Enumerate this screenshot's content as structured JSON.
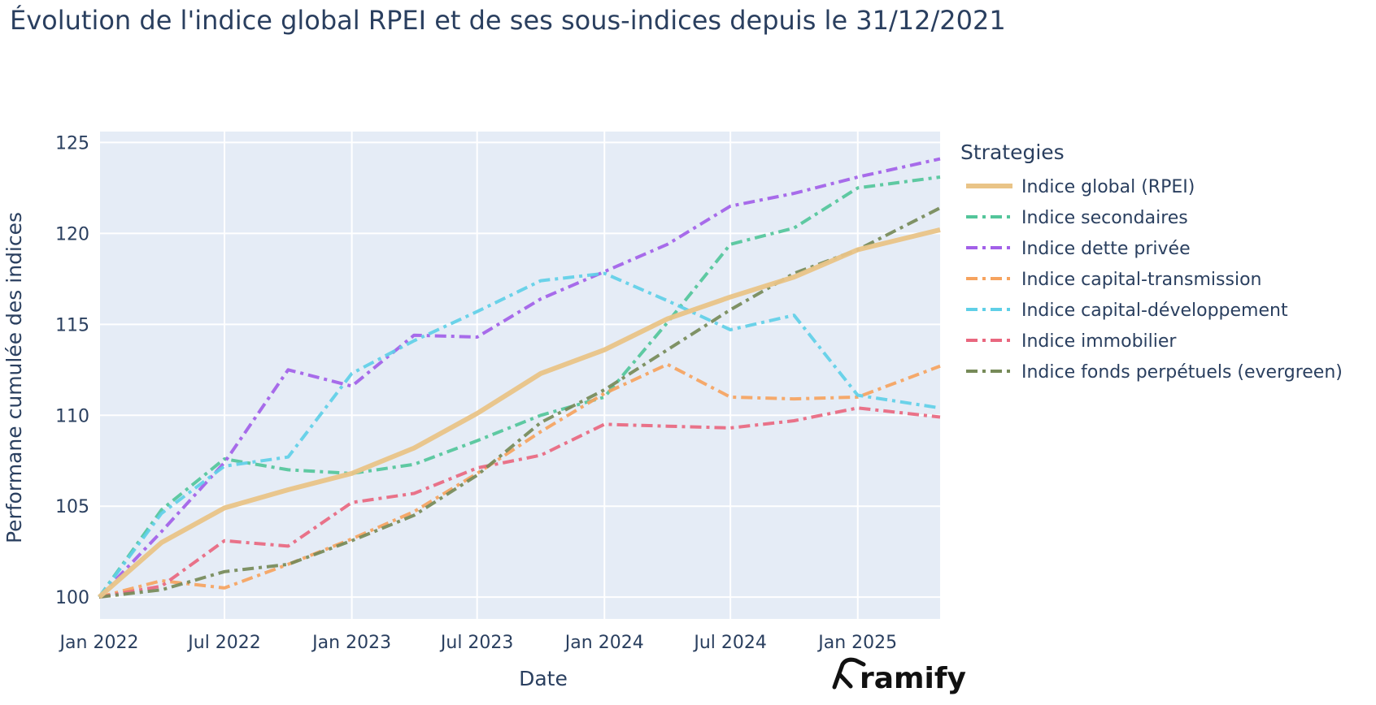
{
  "chart_data": {
    "type": "line",
    "title": "Évolution de l'indice global RPEI et de ses sous-indices depuis le 31/12/2021",
    "xlabel": "Date",
    "ylabel": "Performane cumulée des indices",
    "x_ticks": [
      "Jan 2022",
      "Jul 2022",
      "Jan 2023",
      "Jul 2023",
      "Jan 2024",
      "Jul 2024",
      "Jan 2025"
    ],
    "y_ticks": [
      100,
      105,
      110,
      115,
      120,
      125
    ],
    "ylim": [
      98.8,
      125.6
    ],
    "xlim": [
      "2022-01-01",
      "2025-04-30"
    ],
    "grid": true,
    "legend_title": "Strategies",
    "legend_position": "right",
    "x": [
      "2022-01-01",
      "2022-04-01",
      "2022-07-01",
      "2022-10-01",
      "2023-01-01",
      "2023-04-01",
      "2023-07-01",
      "2023-10-01",
      "2024-01-01",
      "2024-04-01",
      "2024-07-01",
      "2024-10-01",
      "2025-01-01",
      "2025-04-30"
    ],
    "series": [
      {
        "name": "Indice global (RPEI)",
        "color": "#e9c487",
        "style": "solid",
        "values": [
          100,
          103.0,
          104.9,
          105.9,
          106.8,
          108.2,
          110.1,
          112.3,
          113.6,
          115.3,
          116.5,
          117.6,
          119.1,
          120.2
        ]
      },
      {
        "name": "Indice secondaires",
        "color": "#53c59a",
        "style": "dashdot",
        "values": [
          100,
          104.8,
          107.6,
          107.0,
          106.8,
          107.3,
          108.6,
          110.0,
          111.0,
          115.1,
          119.4,
          120.3,
          122.5,
          123.1
        ]
      },
      {
        "name": "Indice dette privée",
        "color": "#a260e8",
        "style": "dashdot",
        "values": [
          100,
          103.6,
          107.4,
          112.5,
          111.6,
          114.4,
          114.3,
          116.4,
          117.9,
          119.4,
          121.5,
          122.2,
          123.1,
          124.1
        ]
      },
      {
        "name": "Indice capital-transmission",
        "color": "#f6a35e",
        "style": "dashdot",
        "values": [
          100,
          100.9,
          100.5,
          101.8,
          103.2,
          104.7,
          106.8,
          109.1,
          111.2,
          112.8,
          111.0,
          110.9,
          111.0,
          112.7
        ]
      },
      {
        "name": "Indice capital-développement",
        "color": "#5fcfe7",
        "style": "dashdot",
        "values": [
          100,
          104.6,
          107.2,
          107.7,
          112.3,
          114.1,
          115.7,
          117.4,
          117.8,
          116.3,
          114.7,
          115.5,
          111.1,
          110.4
        ]
      },
      {
        "name": "Indice immobilier",
        "color": "#e9677f",
        "style": "dashdot",
        "values": [
          100,
          100.6,
          103.1,
          102.8,
          105.2,
          105.7,
          107.1,
          107.8,
          109.5,
          109.4,
          109.3,
          109.7,
          110.4,
          109.9
        ]
      },
      {
        "name": "Indice fonds perpétuels (evergreen)",
        "color": "#768a58",
        "style": "dashdot",
        "values": [
          100,
          100.4,
          101.4,
          101.8,
          103.1,
          104.5,
          106.7,
          109.6,
          111.4,
          113.6,
          115.8,
          117.8,
          119.1,
          121.4
        ]
      }
    ]
  },
  "logo": {
    "text": "ramify"
  }
}
